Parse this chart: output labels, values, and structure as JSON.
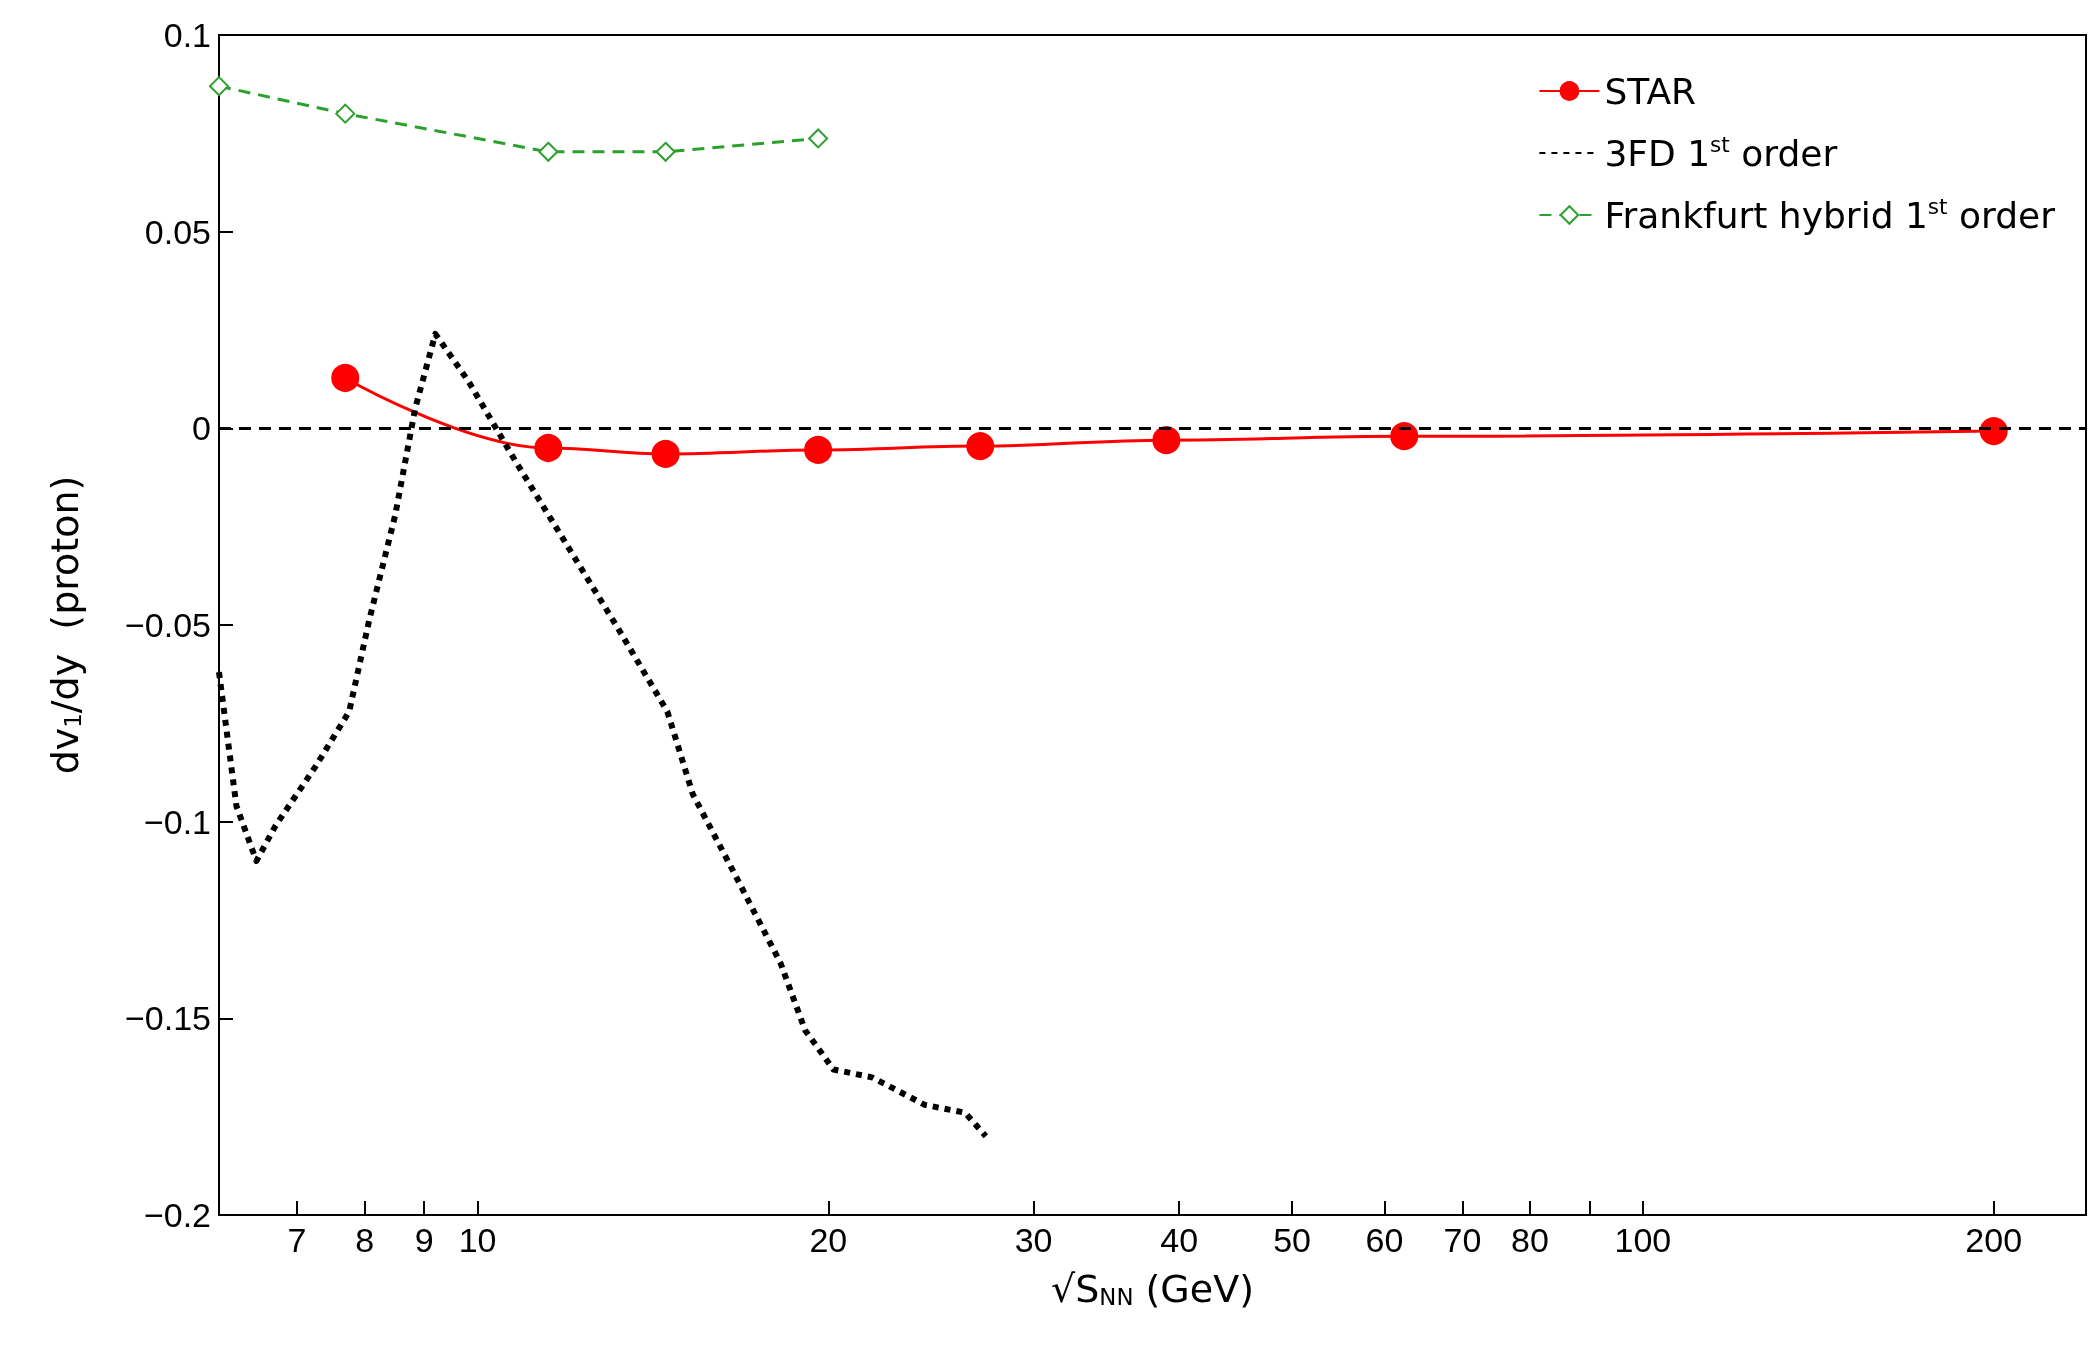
{
  "chart_data": {
    "type": "line",
    "xlabel": "√S$_{NN}$ (GeV)",
    "ylabel": "dv$_{1}$/dy  (proton)",
    "log": "x",
    "xlim": [
      6,
      240
    ],
    "xticks": [
      7,
      8,
      9,
      10,
      20,
      30,
      40,
      50,
      60,
      70,
      80,
      {
        "value": 90,
        "label": null
      },
      100,
      200
    ],
    "ylim": [
      -0.2,
      0.1
    ],
    "yticks": [
      {
        "value": -0.2,
        "label": "−0.2"
      },
      {
        "value": -0.15,
        "label": "−0.15"
      },
      {
        "value": -0.1,
        "label": "−0.1"
      },
      {
        "value": -0.05,
        "label": "−0.05"
      },
      0,
      0.05,
      0.1
    ],
    "grid": false,
    "legend": "top right",
    "ref_lines": [
      {
        "axis": "y",
        "value": 0,
        "label": null,
        "color": "#000000",
        "line_style": "dashed"
      }
    ],
    "series": [
      {
        "name": "STAR",
        "color": "#ff0000",
        "marker": "circle",
        "line_style": "solid",
        "x": [
          7.7,
          11.5,
          14.5,
          19.6,
          27,
          39,
          62.4,
          200
        ],
        "values": [
          0.0128,
          -0.005,
          -0.0065,
          -0.0055,
          -0.0045,
          -0.003,
          -0.002,
          -0.0007
        ]
      },
      {
        "name": "3FD 1$^{st}$ order",
        "color": "#000000",
        "marker": "none",
        "line_style": "dotted",
        "x": [
          6.0,
          6.21,
          6.46,
          6.71,
          7.26,
          7.76,
          8.07,
          8.5,
          8.84,
          9.2,
          9.82,
          10.76,
          11.95,
          13.27,
          14.55,
          15.3,
          16.6,
          18.2,
          19.1,
          20.2,
          21.8,
          24.2,
          26.2,
          27.3
        ],
        "values": [
          -0.062,
          -0.096,
          -0.11,
          -0.101,
          -0.086,
          -0.072,
          -0.049,
          -0.022,
          0.005,
          0.024,
          0.012,
          -0.008,
          -0.03,
          -0.052,
          -0.072,
          -0.093,
          -0.113,
          -0.136,
          -0.153,
          -0.163,
          -0.165,
          -0.172,
          -0.174,
          -0.18
        ]
      },
      {
        "name": "Frankfurt hybrid 1$^{st}$ order",
        "color": "#2ca02c",
        "marker": "diamond",
        "line_style": "dashed",
        "x": [
          6.0,
          7.7,
          11.5,
          14.5,
          19.6
        ],
        "values": [
          0.087,
          0.08,
          0.0703,
          0.0703,
          0.0737
        ]
      }
    ]
  }
}
